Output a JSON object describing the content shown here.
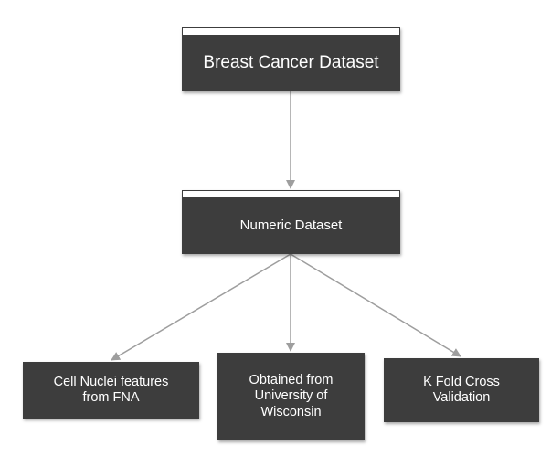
{
  "nodes": {
    "root": {
      "label": "Breast Cancer Dataset"
    },
    "numeric": {
      "label": "Numeric Dataset"
    },
    "leaf1": {
      "label": "Cell Nuclei features\nfrom FNA"
    },
    "leaf2": {
      "label": "Obtained from\nUniversity of\nWisconsin"
    },
    "leaf3": {
      "label": "K Fold Cross\nValidation"
    }
  },
  "edges": [
    {
      "from": "root",
      "to": "numeric"
    },
    {
      "from": "numeric",
      "to": "leaf1"
    },
    {
      "from": "numeric",
      "to": "leaf2"
    },
    {
      "from": "numeric",
      "to": "leaf3"
    }
  ],
  "colors": {
    "node_fill": "#3d3d3d",
    "node_text": "#ffffff",
    "connector": "#9e9e9e"
  }
}
